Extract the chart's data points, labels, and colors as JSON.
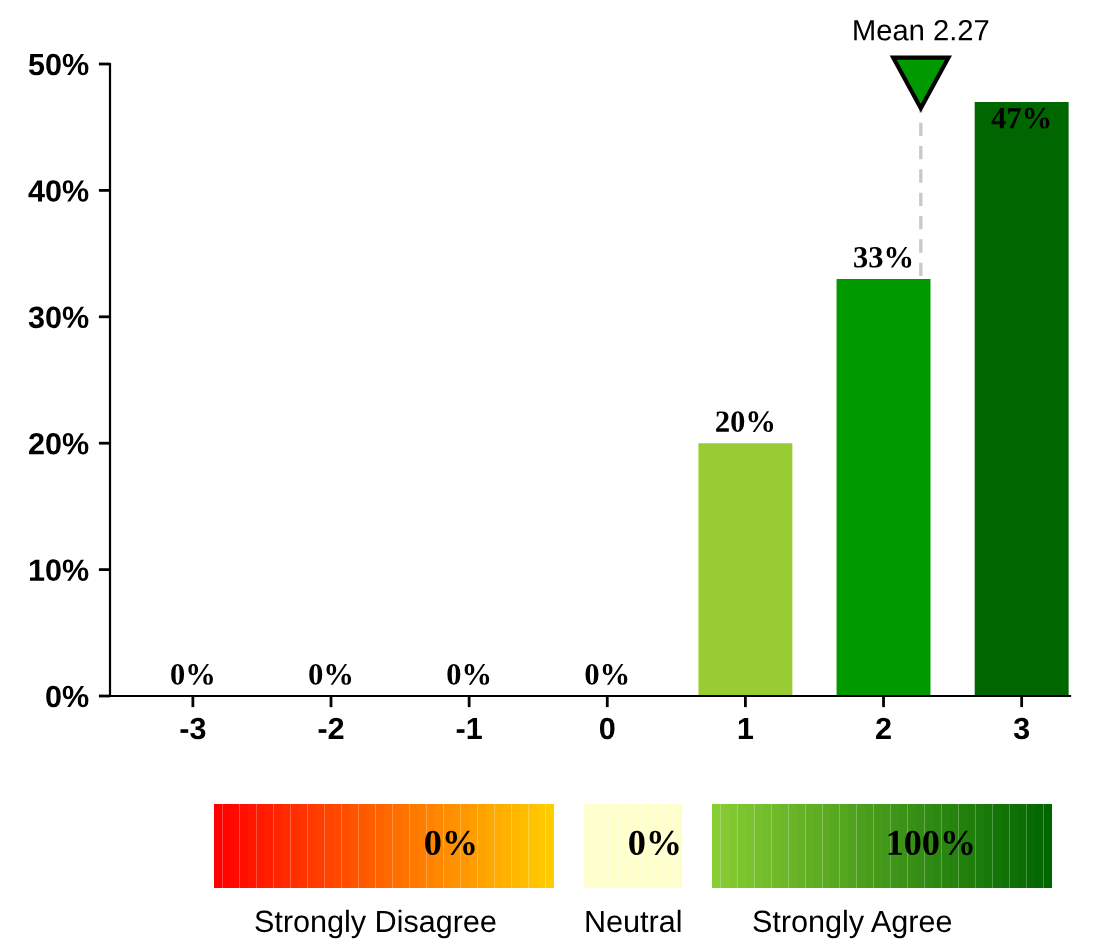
{
  "chart_data": [
    {
      "type": "bar",
      "x": [
        -3,
        -2,
        -1,
        0,
        1,
        2,
        3
      ],
      "values": [
        0,
        0,
        0,
        0,
        20,
        33,
        47
      ],
      "colors": [
        "#ff0000",
        "#ff6600",
        "#ffcc00",
        "#ffffcc",
        "#99cc33",
        "#009900",
        "#006600"
      ],
      "data_labels": true,
      "value_labels": [
        "0%",
        "0%",
        "0%",
        "0%",
        "20%",
        "33%",
        "47%"
      ],
      "xlim": [
        -3.6,
        3.35
      ],
      "xticks": [
        -3,
        -2,
        -1,
        0,
        1,
        2,
        3
      ],
      "ylim": [
        0,
        50
      ],
      "yticks": [
        {
          "value": 0,
          "label": "0%"
        },
        {
          "value": 10,
          "label": "10%"
        },
        {
          "value": 20,
          "label": "20%"
        },
        {
          "value": 30,
          "label": "30%"
        },
        {
          "value": 40,
          "label": "40%"
        },
        {
          "value": 50,
          "label": "50%"
        }
      ],
      "ref_lines": [
        {
          "axis": "x",
          "value": 2.27,
          "label": "Mean 2.27",
          "color": "#c8c8c8",
          "line_style": "dashed"
        }
      ],
      "grid": false,
      "legend": false
    },
    {
      "type": "other",
      "categories": [
        "Strongly Disagree",
        "Neutral",
        "Strongly Agree"
      ],
      "value_labels": [
        "0%",
        "0%",
        "100%"
      ],
      "colors": [
        [
          "#ff0000",
          "#ffcc00"
        ],
        [
          "#ffffcc",
          "#ffffcc"
        ],
        [
          "#88cc33",
          "#006600"
        ]
      ]
    }
  ]
}
